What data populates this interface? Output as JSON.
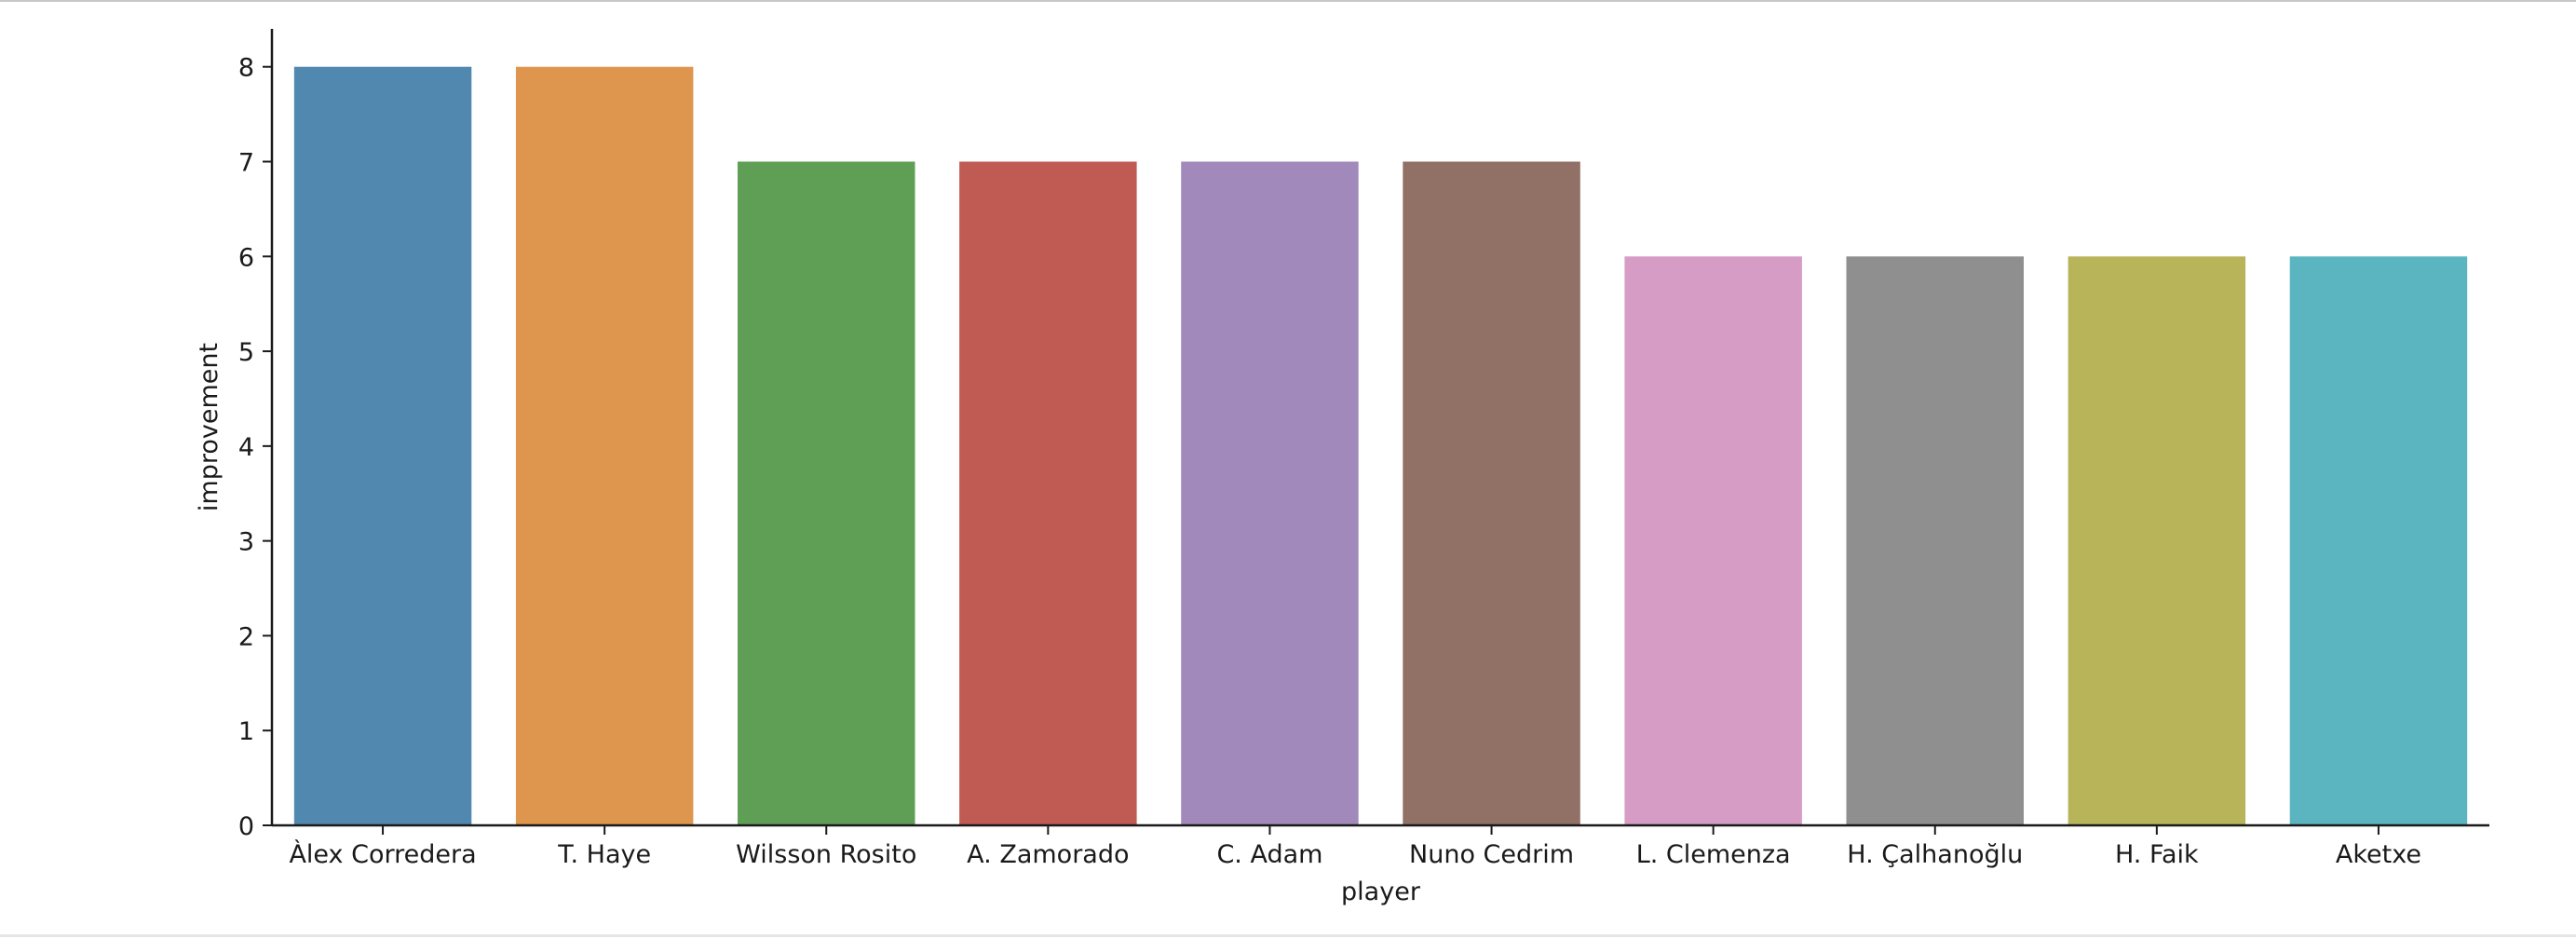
{
  "chart_data": {
    "type": "bar",
    "categories": [
      "Àlex Corredera",
      "T. Haye",
      "Wilsson Rosito",
      "A. Zamorado",
      "C. Adam",
      "Nuno Cedrim",
      "L. Clemenza",
      "H. Çalhanoğlu",
      "H. Faik",
      "Aketxe"
    ],
    "values": [
      8,
      8,
      7,
      7,
      7,
      7,
      6,
      6,
      6,
      6
    ],
    "colors": [
      "#5088b0",
      "#de964e",
      "#5f9f55",
      "#c05b54",
      "#a18abb",
      "#917066",
      "#d69cc5",
      "#8f8f8f",
      "#b8b45a",
      "#5bb5c1"
    ],
    "title": "",
    "xlabel": "player",
    "ylabel": "improvement",
    "ylim": [
      0,
      8.4
    ],
    "yticks": [
      0,
      1,
      2,
      3,
      4,
      5,
      6,
      7,
      8
    ],
    "grid": false,
    "legend": "none"
  }
}
